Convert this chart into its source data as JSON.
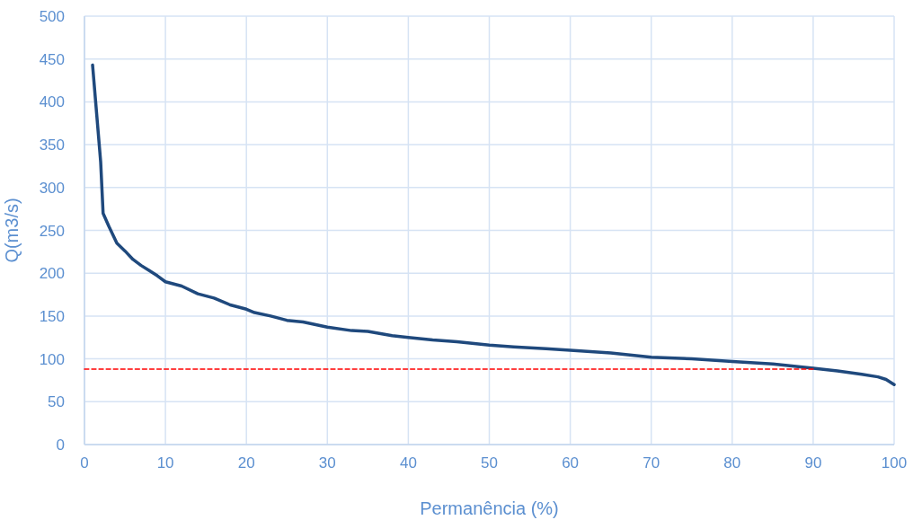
{
  "chart_data": {
    "type": "line",
    "xlabel": "Permanência (%)",
    "ylabel": "Q(m3/s)",
    "xlim": [
      0,
      100
    ],
    "xticks": [
      0,
      10,
      20,
      30,
      40,
      50,
      60,
      70,
      80,
      90,
      100
    ],
    "ylim": [
      0,
      500
    ],
    "yticks": [
      0,
      50,
      100,
      150,
      200,
      250,
      300,
      350,
      400,
      450,
      500
    ],
    "grid": true,
    "series": [
      {
        "color": "#1f497d",
        "x": [
          1,
          2,
          2.3,
          3,
          4,
          5,
          6,
          7,
          8,
          9,
          10,
          12,
          14,
          16,
          18,
          20,
          21,
          23,
          25,
          27,
          30,
          33,
          35,
          38,
          40,
          43,
          46,
          50,
          53,
          57,
          60,
          65,
          70,
          75,
          80,
          85,
          90,
          93,
          96,
          98,
          99,
          100
        ],
        "values": [
          443,
          330,
          270,
          255,
          235,
          226,
          216,
          209,
          203,
          197,
          190,
          185,
          176,
          171,
          163,
          158,
          154,
          150,
          145,
          143,
          137,
          133,
          132,
          127,
          125,
          122,
          120,
          116,
          114,
          112,
          110,
          107,
          102,
          100,
          97,
          94,
          89,
          86,
          82,
          79,
          76,
          70
        ]
      },
      {
        "color": "#ff0000",
        "line_style": "dashed",
        "x": [
          0,
          90
        ],
        "values": [
          88,
          88
        ]
      }
    ]
  }
}
